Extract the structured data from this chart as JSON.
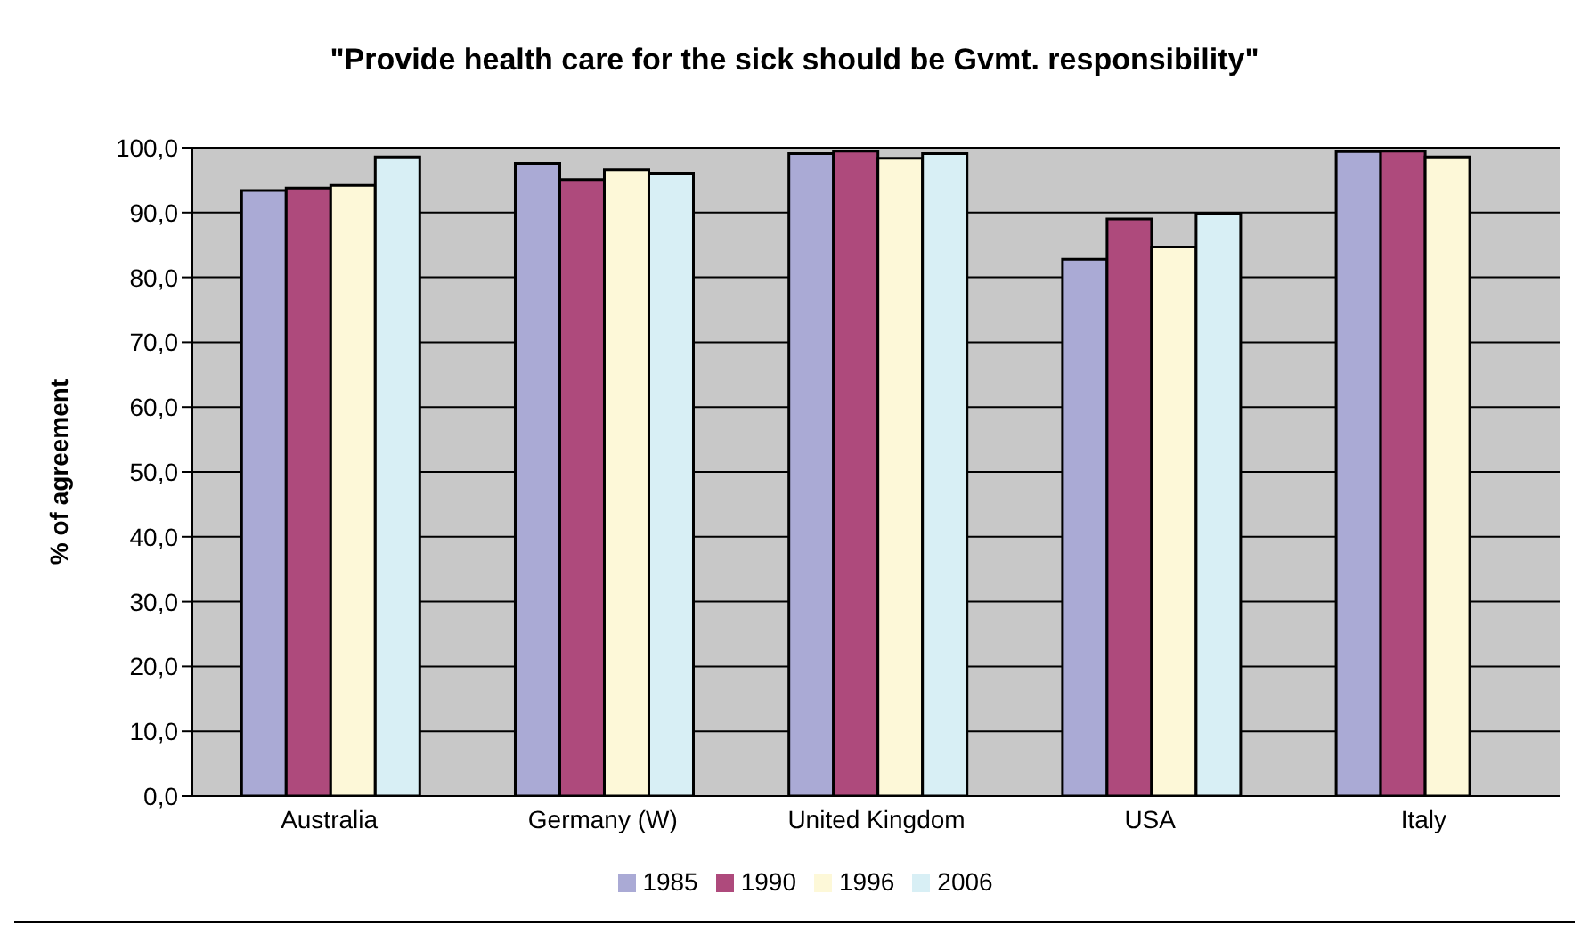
{
  "chart_data": {
    "type": "bar",
    "title": "\"Provide health care for the sick should be Gvmt. responsibility\"",
    "ylabel": "% of agreement",
    "categories": [
      "Australia",
      "Germany (W)",
      "United Kingdom",
      "USA",
      "Italy"
    ],
    "series": [
      {
        "name": "1985",
        "color": "#aaaad5",
        "values": [
          93.4,
          97.6,
          99.1,
          82.8,
          99.4
        ]
      },
      {
        "name": "1990",
        "color": "#ae4a7c",
        "values": [
          93.8,
          95.1,
          99.5,
          89.0,
          99.5
        ]
      },
      {
        "name": "1996",
        "color": "#fdf8d8",
        "values": [
          94.2,
          96.6,
          98.4,
          84.7,
          98.6
        ]
      },
      {
        "name": "2006",
        "color": "#d8eff5",
        "values": [
          98.6,
          96.1,
          99.1,
          89.8,
          null
        ]
      }
    ],
    "ylim": [
      0,
      100
    ],
    "yticks": [
      {
        "value": 0,
        "label": "0,0"
      },
      {
        "value": 10,
        "label": "10,0"
      },
      {
        "value": 20,
        "label": "20,0"
      },
      {
        "value": 30,
        "label": "30,0"
      },
      {
        "value": 40,
        "label": "40,0"
      },
      {
        "value": 50,
        "label": "50,0"
      },
      {
        "value": 60,
        "label": "60,0"
      },
      {
        "value": 70,
        "label": "70,0"
      },
      {
        "value": 80,
        "label": "80,0"
      },
      {
        "value": 90,
        "label": "90,0"
      },
      {
        "value": 100,
        "label": "100,0"
      }
    ],
    "grid": "y",
    "legend": "bottom"
  }
}
